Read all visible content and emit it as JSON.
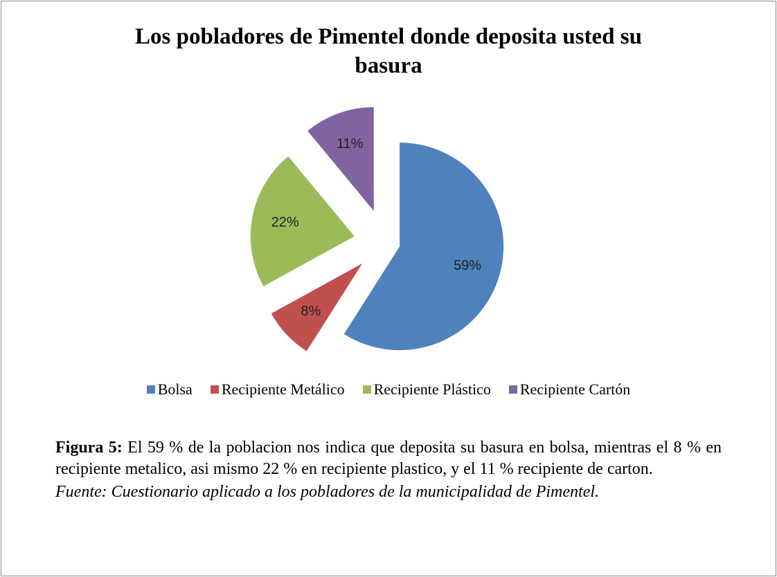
{
  "chart_data": {
    "type": "pie",
    "title": "Los pobladores de Pimentel donde deposita usted su basura",
    "categories": [
      "Bolsa",
      "Recipiente Metálico",
      "Recipiente Plástico",
      "Recipiente Cartón"
    ],
    "values": [
      59,
      8,
      22,
      11
    ],
    "value_labels": [
      "59%",
      "8%",
      "22%",
      "11%"
    ],
    "colors": [
      "#4f81bd",
      "#c0504d",
      "#9bbb59",
      "#8064a2"
    ],
    "legend": "bottom"
  },
  "caption": {
    "label": "Figura 5:",
    "text": "El 59 % de la poblacion  nos indica que deposita su basura en bolsa, mientras el 8 % en recipiente metalico, asi mismo 22 %  en recipiente plastico, y el 11 % recipiente de carton.",
    "source": "Fuente: Cuestionario aplicado a los pobladores de la municipalidad de Pimentel."
  }
}
